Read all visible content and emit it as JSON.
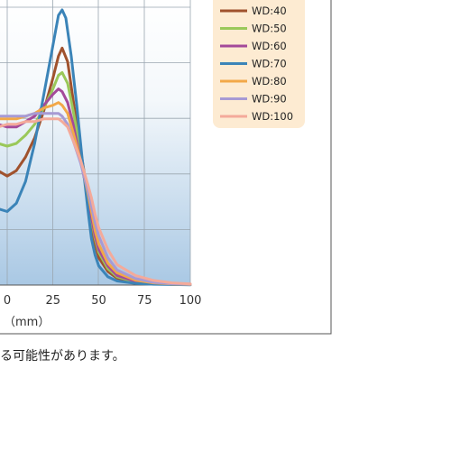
{
  "footnote": "る可能性があります。",
  "chart_data": {
    "type": "line",
    "xlabel": "（mm）",
    "x_ticks": [
      "0",
      "25",
      "50",
      "75",
      "100"
    ],
    "xlim": [
      -5,
      100
    ],
    "ylim": [
      0,
      1
    ],
    "grid": true,
    "legend_position": "top-right",
    "series": [
      {
        "name": "WD:40",
        "color": "#a0522d",
        "points": [
          [
            -5,
            0.42
          ],
          [
            0,
            0.4
          ],
          [
            5,
            0.42
          ],
          [
            10,
            0.47
          ],
          [
            15,
            0.54
          ],
          [
            20,
            0.64
          ],
          [
            25,
            0.76
          ],
          [
            28,
            0.84
          ],
          [
            30,
            0.87
          ],
          [
            33,
            0.82
          ],
          [
            36,
            0.68
          ],
          [
            40,
            0.5
          ],
          [
            44,
            0.33
          ],
          [
            46,
            0.22
          ],
          [
            48,
            0.15
          ],
          [
            50,
            0.1
          ],
          [
            55,
            0.05
          ],
          [
            60,
            0.025
          ],
          [
            70,
            0.01
          ],
          [
            80,
            0.005
          ],
          [
            90,
            0.003
          ],
          [
            100,
            0.002
          ]
        ]
      },
      {
        "name": "WD:50",
        "color": "#9ac85a",
        "points": [
          [
            -5,
            0.52
          ],
          [
            0,
            0.51
          ],
          [
            5,
            0.52
          ],
          [
            10,
            0.55
          ],
          [
            15,
            0.59
          ],
          [
            20,
            0.65
          ],
          [
            25,
            0.72
          ],
          [
            28,
            0.77
          ],
          [
            30,
            0.78
          ],
          [
            33,
            0.74
          ],
          [
            36,
            0.64
          ],
          [
            40,
            0.49
          ],
          [
            44,
            0.33
          ],
          [
            46,
            0.24
          ],
          [
            48,
            0.17
          ],
          [
            50,
            0.12
          ],
          [
            55,
            0.06
          ],
          [
            60,
            0.03
          ],
          [
            70,
            0.012
          ],
          [
            80,
            0.006
          ],
          [
            90,
            0.003
          ],
          [
            100,
            0.002
          ]
        ]
      },
      {
        "name": "WD:60",
        "color": "#a44a9a",
        "points": [
          [
            -5,
            0.59
          ],
          [
            0,
            0.58
          ],
          [
            5,
            0.58
          ],
          [
            10,
            0.6
          ],
          [
            15,
            0.62
          ],
          [
            20,
            0.66
          ],
          [
            25,
            0.7
          ],
          [
            28,
            0.72
          ],
          [
            30,
            0.71
          ],
          [
            33,
            0.67
          ],
          [
            36,
            0.59
          ],
          [
            40,
            0.46
          ],
          [
            44,
            0.33
          ],
          [
            46,
            0.25
          ],
          [
            48,
            0.18
          ],
          [
            50,
            0.13
          ],
          [
            55,
            0.07
          ],
          [
            60,
            0.035
          ],
          [
            70,
            0.014
          ],
          [
            80,
            0.006
          ],
          [
            90,
            0.003
          ],
          [
            100,
            0.002
          ]
        ]
      },
      {
        "name": "WD:70",
        "color": "#3b84b8",
        "points": [
          [
            -5,
            0.28
          ],
          [
            0,
            0.27
          ],
          [
            5,
            0.3
          ],
          [
            10,
            0.38
          ],
          [
            15,
            0.52
          ],
          [
            20,
            0.7
          ],
          [
            25,
            0.88
          ],
          [
            28,
            0.99
          ],
          [
            30,
            1.01
          ],
          [
            32,
            0.98
          ],
          [
            35,
            0.84
          ],
          [
            38,
            0.66
          ],
          [
            41,
            0.46
          ],
          [
            44,
            0.28
          ],
          [
            46,
            0.17
          ],
          [
            48,
            0.11
          ],
          [
            50,
            0.07
          ],
          [
            55,
            0.03
          ],
          [
            60,
            0.015
          ],
          [
            70,
            0.006
          ],
          [
            80,
            0.003
          ],
          [
            90,
            0.002
          ],
          [
            100,
            0.001
          ]
        ]
      },
      {
        "name": "WD:80",
        "color": "#f2a848",
        "points": [
          [
            -5,
            0.61
          ],
          [
            0,
            0.61
          ],
          [
            5,
            0.61
          ],
          [
            10,
            0.62
          ],
          [
            15,
            0.63
          ],
          [
            20,
            0.65
          ],
          [
            25,
            0.66
          ],
          [
            28,
            0.67
          ],
          [
            30,
            0.66
          ],
          [
            33,
            0.63
          ],
          [
            36,
            0.56
          ],
          [
            40,
            0.46
          ],
          [
            44,
            0.34
          ],
          [
            46,
            0.27
          ],
          [
            48,
            0.2
          ],
          [
            50,
            0.15
          ],
          [
            55,
            0.08
          ],
          [
            60,
            0.045
          ],
          [
            70,
            0.018
          ],
          [
            80,
            0.008
          ],
          [
            90,
            0.004
          ],
          [
            100,
            0.002
          ]
        ]
      },
      {
        "name": "WD:90",
        "color": "#a79ad4",
        "points": [
          [
            -5,
            0.62
          ],
          [
            0,
            0.62
          ],
          [
            5,
            0.62
          ],
          [
            10,
            0.62
          ],
          [
            15,
            0.63
          ],
          [
            20,
            0.63
          ],
          [
            25,
            0.63
          ],
          [
            28,
            0.63
          ],
          [
            30,
            0.62
          ],
          [
            33,
            0.59
          ],
          [
            36,
            0.53
          ],
          [
            40,
            0.45
          ],
          [
            44,
            0.35
          ],
          [
            46,
            0.29
          ],
          [
            48,
            0.23
          ],
          [
            50,
            0.18
          ],
          [
            55,
            0.1
          ],
          [
            60,
            0.055
          ],
          [
            70,
            0.024
          ],
          [
            80,
            0.01
          ],
          [
            90,
            0.005
          ],
          [
            100,
            0.003
          ]
        ]
      },
      {
        "name": "WD:100",
        "color": "#f4aa9a",
        "points": [
          [
            -5,
            0.58
          ],
          [
            0,
            0.59
          ],
          [
            5,
            0.59
          ],
          [
            10,
            0.6
          ],
          [
            15,
            0.6
          ],
          [
            20,
            0.61
          ],
          [
            25,
            0.61
          ],
          [
            28,
            0.61
          ],
          [
            30,
            0.6
          ],
          [
            33,
            0.58
          ],
          [
            36,
            0.53
          ],
          [
            40,
            0.46
          ],
          [
            44,
            0.37
          ],
          [
            46,
            0.32
          ],
          [
            48,
            0.26
          ],
          [
            50,
            0.21
          ],
          [
            55,
            0.13
          ],
          [
            60,
            0.075
          ],
          [
            70,
            0.035
          ],
          [
            80,
            0.017
          ],
          [
            90,
            0.008
          ],
          [
            100,
            0.004
          ]
        ]
      }
    ]
  }
}
